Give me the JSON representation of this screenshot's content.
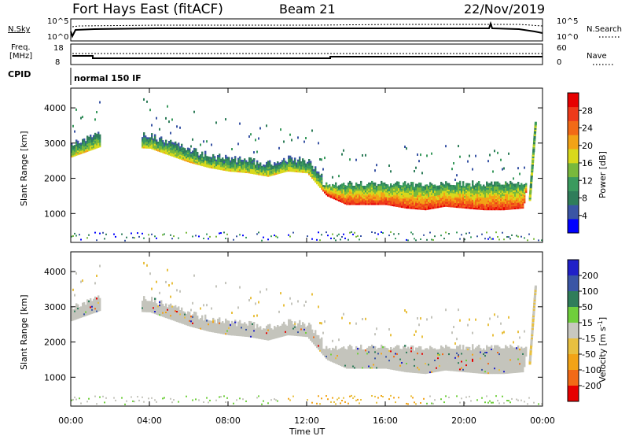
{
  "header": {
    "station": "Fort Hays East (fitACF)",
    "beam": "Beam 21",
    "date": "22/Nov/2019"
  },
  "top_panels": {
    "nsky_label": "N.Sky",
    "nsearch_label": "N.Search",
    "nsky_ticks": [
      "10^5",
      "10^0"
    ],
    "nsearch_ticks": [
      "10^5",
      "10^0"
    ],
    "freq_label_1": "Freq.",
    "freq_label_2": "[MHz]",
    "freq_ticks": [
      "18",
      "8"
    ],
    "nave_label": "Nave",
    "nave_ticks": [
      "60",
      "0"
    ],
    "cpid_label": "CPID",
    "cpid_text": "normal 150 IF"
  },
  "colors": {
    "power_scale": [
      "#0000ff",
      "#3a55a5",
      "#2f7d5a",
      "#3a9a5e",
      "#79b83c",
      "#d8d81c",
      "#f2a316",
      "#f26a16",
      "#ee3a1a",
      "#e60000"
    ],
    "velocity_scale": [
      "#2020c8",
      "#3a55a5",
      "#2f7d5a",
      "#6fcf3c",
      "#c8c8c0",
      "#e8c040",
      "#f2a316",
      "#f26a16",
      "#e60000"
    ],
    "ground_scatter": "#c4c4bc"
  },
  "power_colorbar": {
    "label": "Power [dB]",
    "ticks": [
      "28",
      "24",
      "20",
      "16",
      "12",
      "8",
      "4"
    ]
  },
  "velocity_colorbar": {
    "label_main": "Velocity [m s",
    "label_sup": "-1",
    "label_end": "]",
    "ticks": [
      "200",
      "100",
      "50",
      "15",
      "-15",
      "-50",
      "-100",
      "-200"
    ]
  },
  "chart_data": [
    {
      "type": "heatmap",
      "title": "Power",
      "xlabel": "Time UT",
      "ylabel": "Slant Range [km]",
      "x_ticks": [
        "00:00",
        "04:00",
        "08:00",
        "12:00",
        "16:00",
        "20:00",
        "00:00"
      ],
      "y_ticks": [
        "4000",
        "3000",
        "2000",
        "1000"
      ],
      "x_range_hours": [
        0,
        24
      ],
      "y_range_km": [
        180,
        4560
      ],
      "backscatter_edge": {
        "time_h": [
          0.0,
          0.5,
          1.0,
          1.5,
          4.0,
          5.0,
          6.0,
          7.0,
          8.0,
          9.0,
          10.0,
          11.0,
          12.0,
          13.0,
          14.0,
          15.0,
          16.0,
          17.0,
          18.0,
          19.0,
          20.0,
          21.0,
          22.0,
          23.0,
          23.5
        ],
        "range_km": [
          2600,
          2700,
          2800,
          2900,
          2850,
          2650,
          2450,
          2300,
          2200,
          2150,
          2050,
          2200,
          2150,
          1500,
          1250,
          1250,
          1250,
          1150,
          1100,
          1200,
          1150,
          1100,
          1100,
          1150,
          3000
        ]
      },
      "colorbar": {
        "label": "Power [dB]",
        "min": 0,
        "max": 30
      }
    },
    {
      "type": "heatmap",
      "title": "Velocity",
      "xlabel": "Time UT",
      "ylabel": "Slant Range [km]",
      "x_ticks": [
        "00:00",
        "04:00",
        "08:00",
        "12:00",
        "16:00",
        "20:00",
        "00:00"
      ],
      "y_ticks": [
        "4000",
        "3000",
        "2000",
        "1000"
      ],
      "x_range_hours": [
        0,
        24
      ],
      "y_range_km": [
        180,
        4560
      ],
      "colorbar": {
        "label": "Velocity [m s-1]",
        "min": -200,
        "max": 200
      }
    }
  ]
}
